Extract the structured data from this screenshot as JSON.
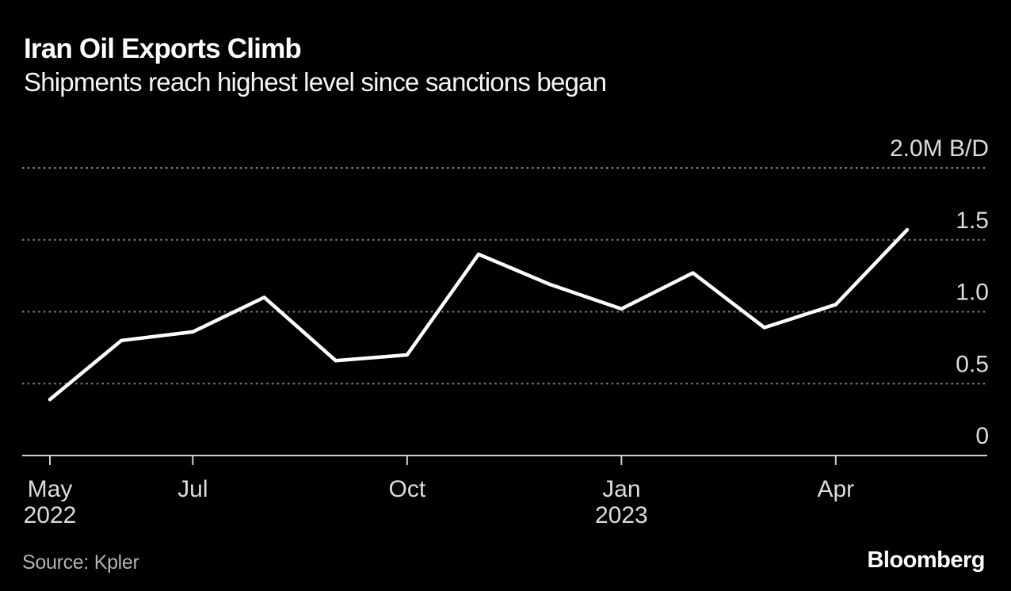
{
  "header": {
    "title": "Iran Oil Exports Climb",
    "subtitle": "Shipments reach highest level since sanctions began"
  },
  "footer": {
    "source": "Source: Kpler",
    "brand": "Bloomberg"
  },
  "chart_data": {
    "type": "line",
    "title": "Iran Oil Exports Climb",
    "subtitle": "Shipments reach highest level since sanctions began",
    "unit": "M B/D",
    "x": [
      "May 2022",
      "Jun 2022",
      "Jul 2022",
      "Aug 2022",
      "Sep 2022",
      "Oct 2022",
      "Nov 2022",
      "Dec 2022",
      "Jan 2023",
      "Feb 2023",
      "Mar 2023",
      "Apr 2023",
      "May 2023"
    ],
    "values": [
      0.39,
      0.8,
      0.86,
      1.1,
      0.66,
      0.7,
      1.4,
      1.19,
      1.02,
      1.27,
      0.89,
      1.05,
      1.57
    ],
    "ylim": [
      0,
      2.0
    ],
    "grid": "horizontal-dotted",
    "legend": "none",
    "y_axis_side": "right",
    "line_color": "#ffffff",
    "background_color": "#000000",
    "y_ticks": [
      {
        "value": 2.0,
        "label": "2.0M B/D"
      },
      {
        "value": 1.5,
        "label": "1.5"
      },
      {
        "value": 1.0,
        "label": "1.0"
      },
      {
        "value": 0.5,
        "label": "0.5"
      },
      {
        "value": 0,
        "label": "0"
      }
    ],
    "x_ticks": [
      {
        "index": 0,
        "label": "May",
        "sublabel": "2022"
      },
      {
        "index": 2,
        "label": "Jul"
      },
      {
        "index": 5,
        "label": "Oct"
      },
      {
        "index": 8,
        "label": "Jan",
        "sublabel": "2023"
      },
      {
        "index": 11,
        "label": "Apr"
      }
    ]
  }
}
